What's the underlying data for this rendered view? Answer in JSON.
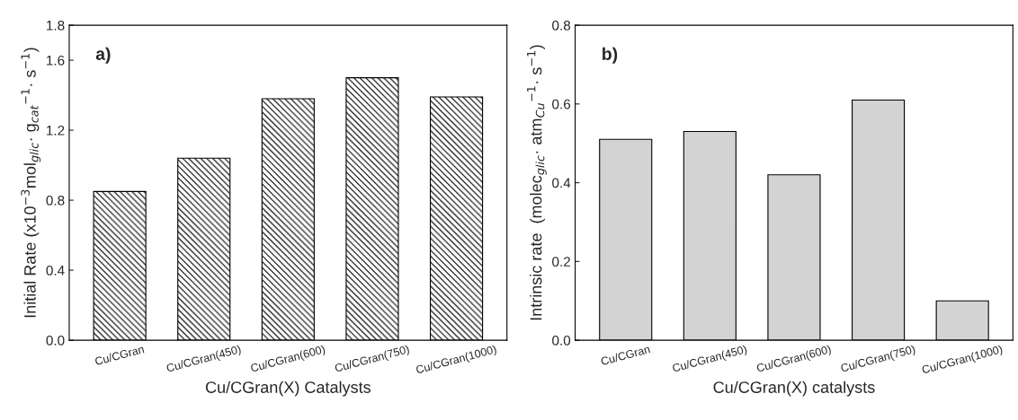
{
  "chart_data": [
    {
      "type": "bar",
      "categories": [
        "Cu/CGran",
        "Cu/CGran(450)",
        "Cu/CGran(600)",
        "Cu/CGran(750)",
        "Cu/CGran(1000)"
      ],
      "values": [
        0.85,
        1.04,
        1.38,
        1.5,
        1.39
      ],
      "color": "#000000",
      "xlabel": "Cu/CGran(X) Catalysts",
      "ylabel": "Initial Rate (x10$^{−3}$mol$_{glic}$· g$_{cat}$$^{−1}$· s$^{−1}$)",
      "ylim": [
        0,
        1.8
      ],
      "yticks": [
        {
          "value": 0,
          "label": "0.0"
        },
        0.4,
        0.8,
        1.2,
        1.6,
        1.8
      ],
      "annotations": [
        "a)"
      ],
      "grid": false,
      "legend": false
    },
    {
      "type": "bar",
      "categories": [
        "Cu/CGran",
        "Cu/CGran(450)",
        "Cu/CGran(600)",
        "Cu/CGran(750)",
        "Cu/CGran(1000)"
      ],
      "values": [
        0.51,
        0.53,
        0.42,
        0.61,
        0.1
      ],
      "color": "#d3d3d3",
      "xlabel": "Cu/CGran(X) catalysts",
      "ylabel": "Intrinsic rate  (molec$_{glic}$· atm$_{Cu}$$^{−1}$· s$^{−1}$)",
      "ylim": [
        0,
        0.8
      ],
      "yticks": [
        {
          "value": 0,
          "label": "0.0"
        },
        0.2,
        0.4,
        0.6,
        0.8
      ],
      "annotations": [
        "b)"
      ],
      "grid": false,
      "legend": false
    }
  ]
}
